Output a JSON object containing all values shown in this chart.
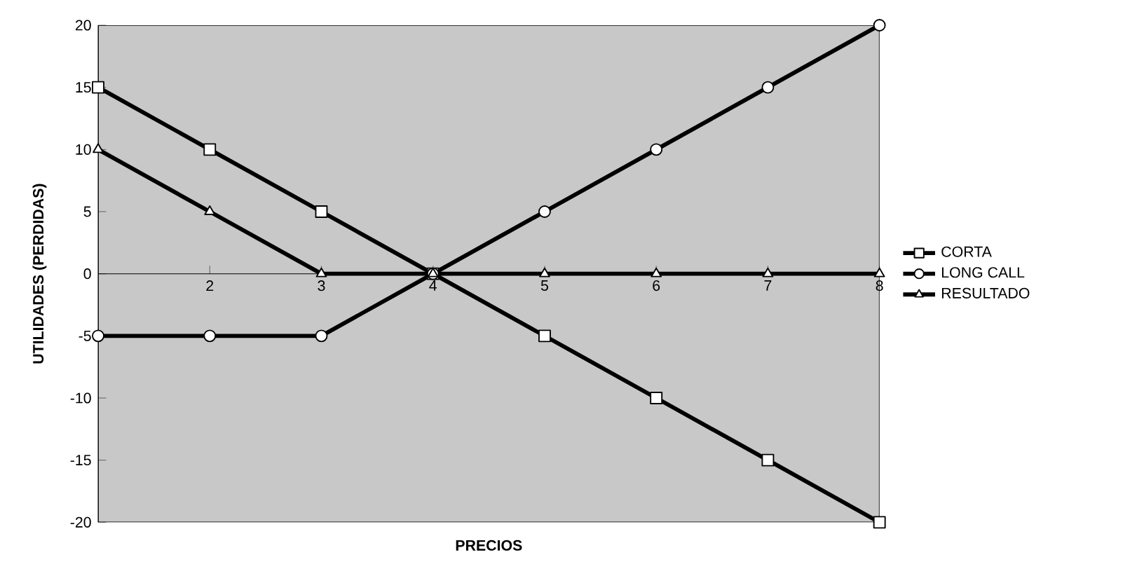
{
  "chart_data": {
    "type": "line",
    "xlabel": "PRECIOS",
    "ylabel": "UTILIDADES (PERDIDAS)",
    "x": [
      1,
      2,
      3,
      4,
      5,
      6,
      7,
      8
    ],
    "xlim": [
      1,
      8
    ],
    "xticks": [
      2,
      3,
      4,
      5,
      6,
      7,
      8
    ],
    "ylim": [
      -20,
      20
    ],
    "yticks": [
      -20,
      -15,
      -10,
      -5,
      0,
      5,
      10,
      15,
      20
    ],
    "grid": false,
    "legend": "right",
    "series": [
      {
        "name": "CORTA",
        "color": "#000000",
        "marker": "square",
        "values": [
          15,
          10,
          5,
          0,
          -5,
          -10,
          -15,
          -20
        ]
      },
      {
        "name": "LONG CALL",
        "color": "#000000",
        "marker": "circle",
        "values": [
          -5,
          -5,
          -5,
          0,
          5,
          10,
          15,
          20
        ]
      },
      {
        "name": "RESULTADO",
        "color": "#000000",
        "marker": "triangle",
        "values": [
          10,
          5,
          0,
          0,
          0,
          0,
          0,
          0
        ]
      }
    ]
  }
}
